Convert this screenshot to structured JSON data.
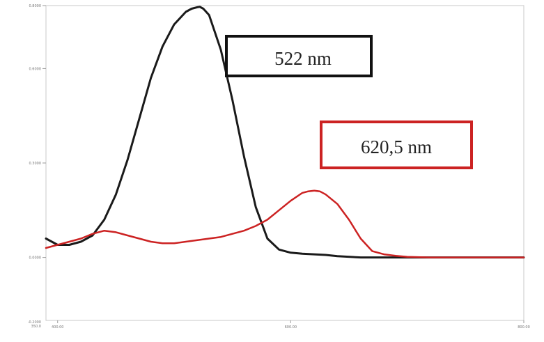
{
  "chart_data": {
    "type": "line",
    "title": "",
    "xlabel": "",
    "ylabel": "",
    "xlim": [
      390,
      800
    ],
    "ylim": [
      -0.2,
      0.8
    ],
    "x_ticks": [
      {
        "value": 400,
        "label": "400.00"
      },
      {
        "value": 600,
        "label": "600.00"
      },
      {
        "value": 800,
        "label": "800.00"
      }
    ],
    "x_min_label": "350.0",
    "y_ticks": [
      {
        "value": 0.0,
        "label": "0.0000"
      },
      {
        "value": 0.3,
        "label": "0.3000"
      },
      {
        "value": 0.6,
        "label": "0.6000"
      },
      {
        "value": 0.8,
        "label": "0.8000"
      }
    ],
    "y_min_label": "-0.2000",
    "series": [
      {
        "color": "#1a1a1a",
        "x": [
          390,
          400,
          410,
          420,
          430,
          440,
          450,
          460,
          470,
          480,
          490,
          500,
          510,
          515,
          520,
          522,
          525,
          530,
          540,
          550,
          560,
          570,
          580,
          590,
          600,
          610,
          620,
          630,
          640,
          660,
          680,
          700,
          720,
          740,
          760,
          780,
          800
        ],
        "y": [
          0.06,
          0.04,
          0.04,
          0.05,
          0.07,
          0.12,
          0.2,
          0.31,
          0.44,
          0.57,
          0.67,
          0.74,
          0.78,
          0.79,
          0.795,
          0.796,
          0.79,
          0.77,
          0.66,
          0.5,
          0.32,
          0.16,
          0.06,
          0.025,
          0.015,
          0.012,
          0.01,
          0.008,
          0.004,
          0.0,
          0.0,
          0.0,
          0.0,
          0.0,
          0.0,
          0.0,
          0.0
        ]
      },
      {
        "color": "#cc2222",
        "x": [
          390,
          400,
          410,
          420,
          430,
          440,
          450,
          460,
          470,
          480,
          490,
          500,
          510,
          520,
          530,
          540,
          550,
          560,
          570,
          580,
          590,
          600,
          610,
          615,
          620,
          620.5,
          625,
          630,
          640,
          650,
          660,
          670,
          680,
          690,
          700,
          720,
          740,
          760,
          780,
          800
        ],
        "y": [
          0.03,
          0.04,
          0.05,
          0.06,
          0.075,
          0.085,
          0.08,
          0.07,
          0.06,
          0.05,
          0.045,
          0.045,
          0.05,
          0.055,
          0.06,
          0.065,
          0.075,
          0.085,
          0.1,
          0.12,
          0.15,
          0.18,
          0.205,
          0.21,
          0.212,
          0.212,
          0.21,
          0.2,
          0.17,
          0.12,
          0.06,
          0.02,
          0.01,
          0.005,
          0.002,
          0.0,
          0.0,
          0.0,
          0.0,
          0.0
        ]
      }
    ],
    "annotations": [
      {
        "text": "522 nm",
        "color": "#111111"
      },
      {
        "text": "620,5 nm",
        "color": "#cc2222"
      }
    ],
    "grid": false
  }
}
